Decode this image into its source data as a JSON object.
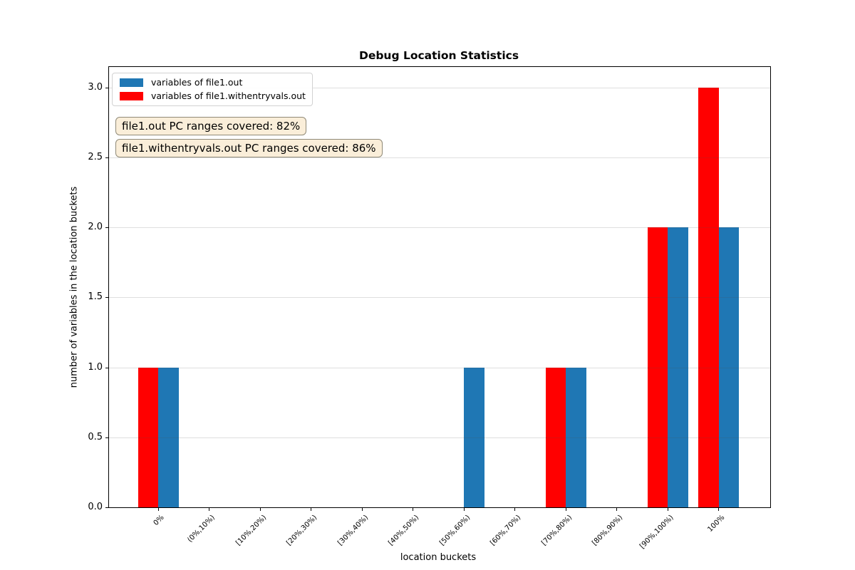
{
  "chart_data": {
    "type": "bar",
    "title": "Debug Location Statistics",
    "xlabel": "location buckets",
    "ylabel": "number of variables in the location buckets",
    "categories": [
      "0%",
      "(0%,10%)",
      "[10%,20%)",
      "[20%,30%)",
      "[30%,40%)",
      "[40%,50%)",
      "[50%,60%)",
      "[60%,70%)",
      "[70%,80%)",
      "[80%,90%)",
      "[90%,100%)",
      "100%"
    ],
    "series": [
      {
        "name": "variables of file1.out",
        "color": "#1f77b4",
        "side": "right",
        "values": [
          1,
          0,
          0,
          0,
          0,
          0,
          1,
          0,
          1,
          0,
          2,
          2
        ]
      },
      {
        "name": "variables of file1.withentryvals.out",
        "color": "#ff0000",
        "side": "left",
        "values": [
          1,
          0,
          0,
          0,
          0,
          0,
          0,
          0,
          1,
          0,
          2,
          3
        ]
      }
    ],
    "ylim": [
      0,
      3.15
    ],
    "yticks": [
      "0.0",
      "0.5",
      "1.0",
      "1.5",
      "2.0",
      "2.5",
      "3.0"
    ],
    "grid": true,
    "legend_position": "upper left",
    "annotations": [
      {
        "text": "file1.out PC ranges covered: 82%"
      },
      {
        "text": "file1.withentryvals.out PC ranges covered: 86%"
      }
    ],
    "annotation_style": {
      "bg": "#faeed9",
      "border": "#908a78"
    },
    "axis_color": "#000000",
    "grid_color": "#dcdcdc"
  }
}
